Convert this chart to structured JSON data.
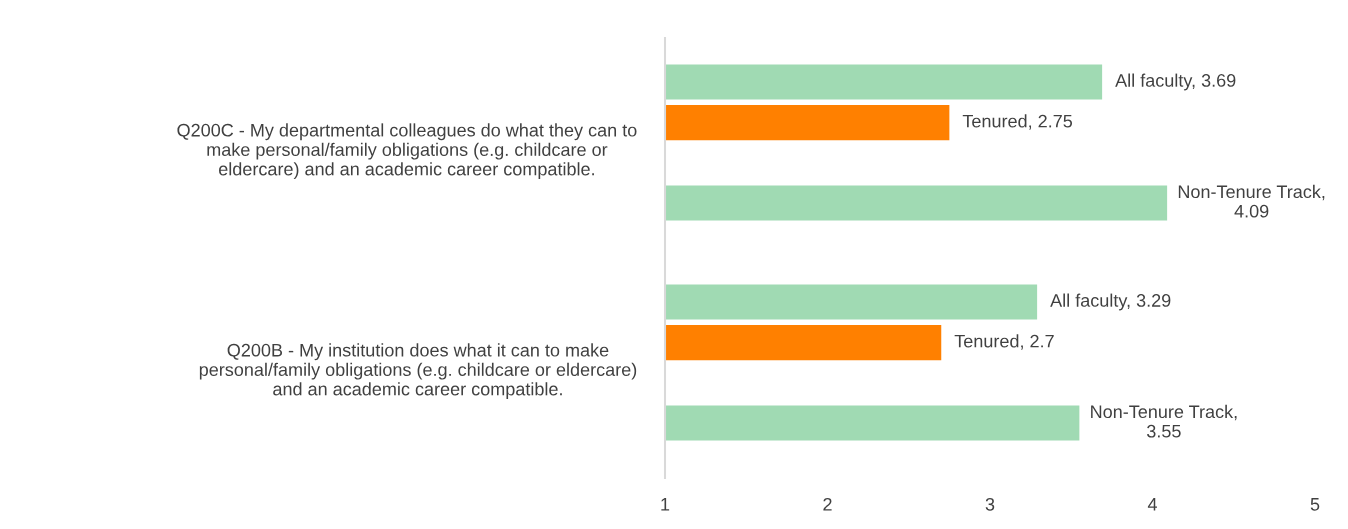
{
  "chart_data": {
    "type": "bar",
    "orientation": "horizontal",
    "categories": [
      "Q200C - My departmental colleagues do what they can to\nmake personal/family obligations (e.g. childcare or\neldercare) and an academic career compatible.",
      "Q200B - My institution does what it can to make\npersonal/family obligations (e.g. childcare or eldercare)\nand an academic career compatible."
    ],
    "series": [
      {
        "color": "#a0dab3",
        "values": [
          3.69,
          3.29
        ],
        "value_labels": [
          "All faculty, 3.69",
          "All faculty, 3.29"
        ]
      },
      {
        "color": "#ff8000",
        "values": [
          2.75,
          2.7
        ],
        "value_labels": [
          "Tenured, 2.75",
          "Tenured, 2.7"
        ]
      },
      {
        "color": "#a0dab3",
        "values": [
          4.09,
          3.55
        ],
        "value_labels": [
          "Non-Tenure Track, 4.09",
          "Non-Tenure Track, 3.55"
        ]
      }
    ],
    "xlim": [
      1,
      5
    ],
    "xticks": [
      1,
      2,
      3,
      4,
      5
    ],
    "grid": false,
    "legend": false
  }
}
